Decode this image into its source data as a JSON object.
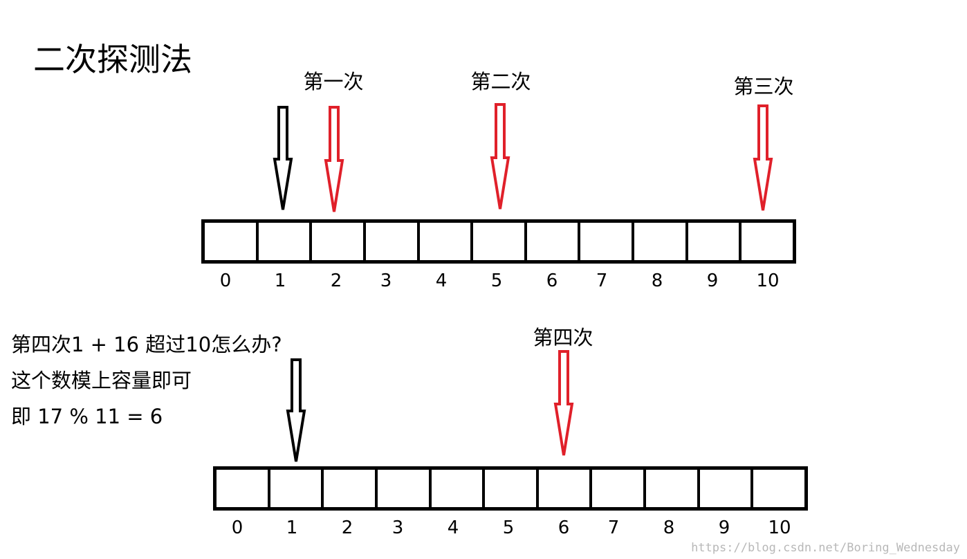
{
  "title": "二次探测法",
  "arrows": {
    "first": "第一次",
    "second": "第二次",
    "third": "第三次",
    "fourth": "第四次"
  },
  "top_array": {
    "indices": [
      "0",
      "1",
      "2",
      "3",
      "4",
      "5",
      "6",
      "7",
      "8",
      "9",
      "10"
    ]
  },
  "bottom_array": {
    "indices": [
      "0",
      "1",
      "2",
      "3",
      "4",
      "5",
      "6",
      "7",
      "8",
      "9",
      "10"
    ]
  },
  "notes": {
    "line1": "第四次1 + 16 超过10怎么办?",
    "line2": "这个数模上容量即可",
    "line3": "即 17 % 11 = 6"
  },
  "colors": {
    "probe_arrow": "#e0202a",
    "start_arrow": "#000000"
  },
  "watermark": "https://blog.csdn.net/Boring_Wednesday"
}
